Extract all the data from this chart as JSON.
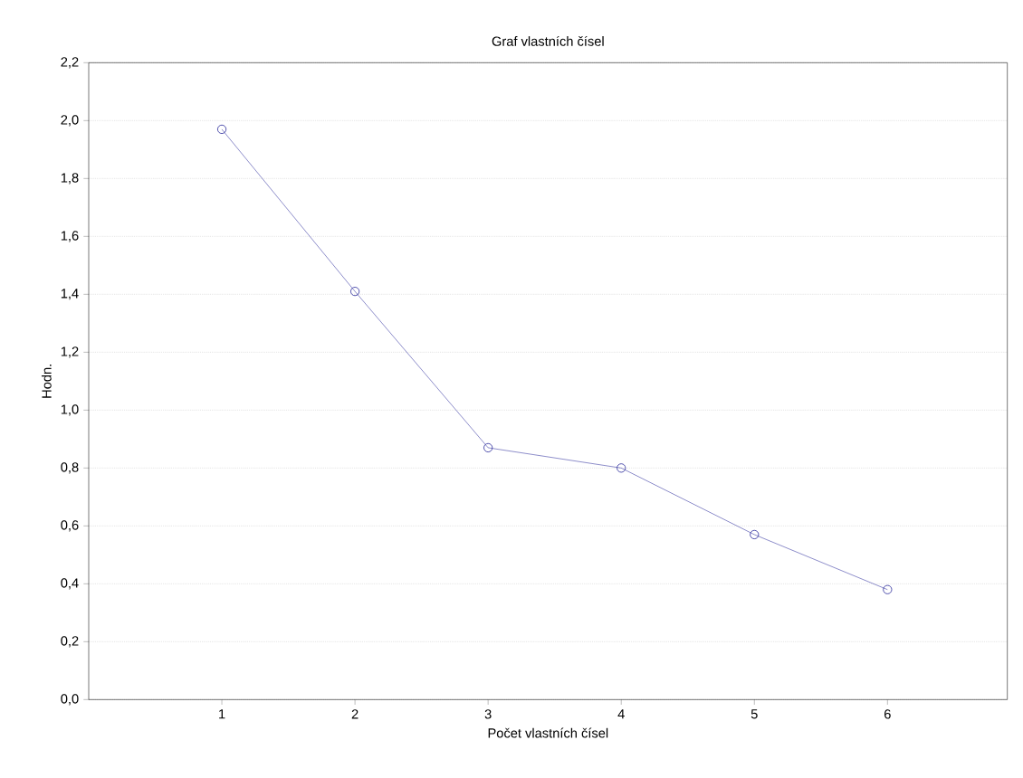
{
  "chart_data": {
    "type": "line",
    "title": "Graf vlastních čísel",
    "xlabel": "Počet vlastních čísel",
    "ylabel": "Hodn.",
    "x": [
      1,
      2,
      3,
      4,
      5,
      6
    ],
    "values": [
      1.97,
      1.41,
      0.87,
      0.8,
      0.57,
      0.38
    ],
    "color": "#2a2a9a",
    "marker": "circle",
    "line_style": "solid",
    "grid": "y",
    "xlim": [
      0,
      6.9
    ],
    "xticks": [
      1,
      2,
      3,
      4,
      5,
      6
    ],
    "ylim": [
      0,
      2.2
    ],
    "yticks": [
      {
        "value": 0,
        "label": "0,0"
      },
      {
        "value": 0.2,
        "label": "0,2"
      },
      {
        "value": 0.4,
        "label": "0,4"
      },
      {
        "value": 0.6,
        "label": "0,6"
      },
      {
        "value": 0.8,
        "label": "0,8"
      },
      {
        "value": 1.0,
        "label": "1,0"
      },
      {
        "value": 1.2,
        "label": "1,2"
      },
      {
        "value": 1.4,
        "label": "1,4"
      },
      {
        "value": 1.6,
        "label": "1,6"
      },
      {
        "value": 1.8,
        "label": "1,8"
      },
      {
        "value": 2.0,
        "label": "2,0"
      },
      {
        "value": 2.2,
        "label": "2,2"
      }
    ]
  }
}
